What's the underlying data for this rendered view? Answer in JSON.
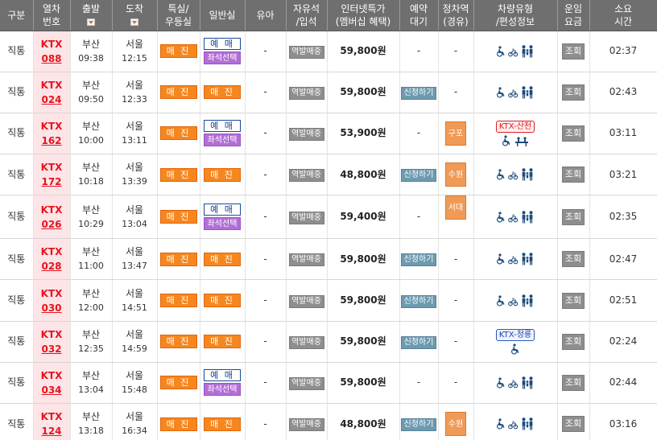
{
  "headers": [
    {
      "l1": "구분",
      "l2": ""
    },
    {
      "l1": "열차",
      "l2": "번호"
    },
    {
      "l1": "출발",
      "l2": ""
    },
    {
      "l1": "도착",
      "l2": ""
    },
    {
      "l1": "특실/",
      "l2": "우등실"
    },
    {
      "l1": "일반실",
      "l2": ""
    },
    {
      "l1": "유아",
      "l2": ""
    },
    {
      "l1": "자유석",
      "l2": "/입석"
    },
    {
      "l1": "인터넷특가",
      "l2": "(멤버십 혜택)"
    },
    {
      "l1": "예약",
      "l2": "대기"
    },
    {
      "l1": "정차역",
      "l2": "(경유)"
    },
    {
      "l1": "차량유형",
      "l2": "/편성정보"
    },
    {
      "l1": "운임",
      "l2": "요금"
    },
    {
      "l1": "소요",
      "l2": "시간"
    }
  ],
  "labels": {
    "buy": "매 진",
    "reserve": "예 매",
    "seat_select": "좌석선택",
    "station_sale": "역발매중",
    "waitlist": "신청하기",
    "inquiry": "조회",
    "none": "-"
  },
  "colors": {
    "header_bg": "#6f6f6f",
    "train_cell_bg": "#fde4e7",
    "train_text": "#e8141e",
    "soldout_orange": "#f6871f",
    "seat_purple": "#b26ed6",
    "waitlist_teal": "#6d9aaf",
    "stop_orange": "#f09a56",
    "icon_navy": "#1c4b7c"
  },
  "rows": [
    {
      "type": "직통",
      "kind": "KTX",
      "num": "088",
      "dep_city": "부산",
      "dep_time": "09:38",
      "arr_city": "서울",
      "arr_time": "12:15",
      "special": "soldout",
      "general": "reserve",
      "infant": "-",
      "free_seat": "역발매중",
      "price": "59,800원",
      "waitlist": "-",
      "stop": "-",
      "vehicle_badge": "",
      "vehicle_badge_color": "",
      "icon_set": "standard",
      "fare": "조회",
      "duration": "02:37"
    },
    {
      "type": "직통",
      "kind": "KTX",
      "num": "024",
      "dep_city": "부산",
      "dep_time": "09:50",
      "arr_city": "서울",
      "arr_time": "12:33",
      "special": "soldout",
      "general": "soldout",
      "infant": "-",
      "free_seat": "역발매중",
      "price": "59,800원",
      "waitlist": "신청하기",
      "stop": "-",
      "vehicle_badge": "",
      "vehicle_badge_color": "",
      "icon_set": "standard",
      "fare": "조회",
      "duration": "02:43"
    },
    {
      "type": "직통",
      "kind": "KTX",
      "num": "162",
      "dep_city": "부산",
      "dep_time": "10:00",
      "arr_city": "서울",
      "arr_time": "13:11",
      "special": "soldout",
      "general": "reserve",
      "infant": "-",
      "free_seat": "역발매중",
      "price": "53,900원",
      "waitlist": "-",
      "stop": "구포",
      "vehicle_badge": "KTX-산천",
      "vehicle_badge_color": "red",
      "icon_set": "sancheon",
      "fare": "조회",
      "duration": "03:11"
    },
    {
      "type": "직통",
      "kind": "KTX",
      "num": "172",
      "dep_city": "부산",
      "dep_time": "10:18",
      "arr_city": "서울",
      "arr_time": "13:39",
      "special": "soldout",
      "general": "soldout",
      "infant": "-",
      "free_seat": "역발매중",
      "price": "48,800원",
      "waitlist": "신청하기",
      "stop": "수원",
      "vehicle_badge": "",
      "vehicle_badge_color": "",
      "icon_set": "standard",
      "fare": "조회",
      "duration": "03:21"
    },
    {
      "type": "직통",
      "kind": "KTX",
      "num": "026",
      "dep_city": "부산",
      "dep_time": "10:29",
      "arr_city": "서울",
      "arr_time": "13:04",
      "special": "soldout",
      "general": "reserve",
      "infant": "-",
      "free_seat": "역발매중",
      "price": "59,400원",
      "waitlist": "-",
      "stop": "서대구",
      "vehicle_badge": "",
      "vehicle_badge_color": "",
      "icon_set": "standard",
      "fare": "조회",
      "duration": "02:35"
    },
    {
      "type": "직통",
      "kind": "KTX",
      "num": "028",
      "dep_city": "부산",
      "dep_time": "11:00",
      "arr_city": "서울",
      "arr_time": "13:47",
      "special": "soldout",
      "general": "soldout",
      "infant": "-",
      "free_seat": "역발매중",
      "price": "59,800원",
      "waitlist": "신청하기",
      "stop": "-",
      "vehicle_badge": "",
      "vehicle_badge_color": "",
      "icon_set": "standard",
      "fare": "조회",
      "duration": "02:47"
    },
    {
      "type": "직통",
      "kind": "KTX",
      "num": "030",
      "dep_city": "부산",
      "dep_time": "12:00",
      "arr_city": "서울",
      "arr_time": "14:51",
      "special": "soldout",
      "general": "soldout",
      "infant": "-",
      "free_seat": "역발매중",
      "price": "59,800원",
      "waitlist": "신청하기",
      "stop": "-",
      "vehicle_badge": "",
      "vehicle_badge_color": "",
      "icon_set": "standard",
      "fare": "조회",
      "duration": "02:51"
    },
    {
      "type": "직통",
      "kind": "KTX",
      "num": "032",
      "dep_city": "부산",
      "dep_time": "12:35",
      "arr_city": "서울",
      "arr_time": "14:59",
      "special": "soldout",
      "general": "soldout",
      "infant": "-",
      "free_seat": "역발매중",
      "price": "59,800원",
      "waitlist": "신청하기",
      "stop": "-",
      "vehicle_badge": "KTX-청룡",
      "vehicle_badge_color": "blue",
      "icon_set": "cheongryong",
      "fare": "조회",
      "duration": "02:24"
    },
    {
      "type": "직통",
      "kind": "KTX",
      "num": "034",
      "dep_city": "부산",
      "dep_time": "13:04",
      "arr_city": "서울",
      "arr_time": "15:48",
      "special": "soldout",
      "general": "reserve",
      "infant": "-",
      "free_seat": "역발매중",
      "price": "59,800원",
      "waitlist": "-",
      "stop": "-",
      "vehicle_badge": "",
      "vehicle_badge_color": "",
      "icon_set": "standard",
      "fare": "조회",
      "duration": "02:44"
    },
    {
      "type": "직통",
      "kind": "KTX",
      "num": "124",
      "dep_city": "부산",
      "dep_time": "13:18",
      "arr_city": "서울",
      "arr_time": "16:34",
      "special": "soldout",
      "general": "soldout",
      "infant": "-",
      "free_seat": "역발매중",
      "price": "48,800원",
      "waitlist": "신청하기",
      "stop": "수원",
      "vehicle_badge": "",
      "vehicle_badge_color": "",
      "icon_set": "standard",
      "fare": "조회",
      "duration": "03:16"
    }
  ]
}
